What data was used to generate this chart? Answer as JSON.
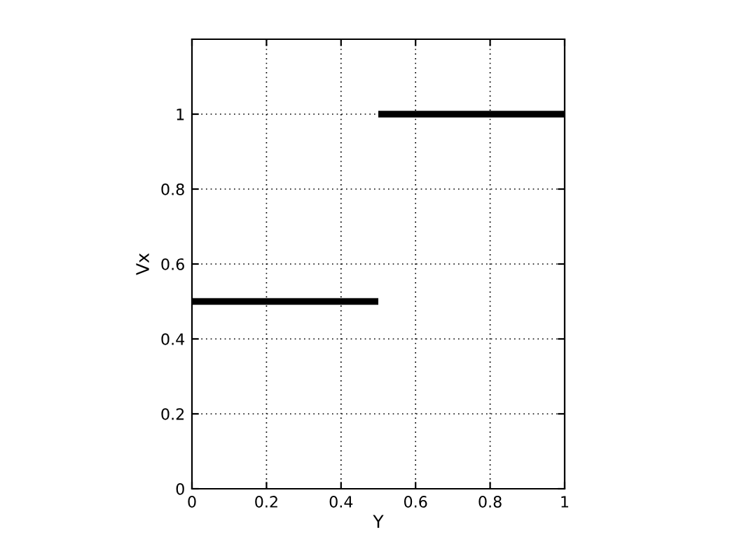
{
  "chart_data": {
    "type": "line",
    "xlabel": "Y",
    "ylabel": "Vx",
    "series": [
      {
        "color": "#000000",
        "x": [
          0,
          0.5
        ],
        "values": [
          0.5,
          0.5
        ]
      },
      {
        "color": "#000000",
        "x": [
          0.5,
          1
        ],
        "values": [
          1,
          1
        ]
      }
    ],
    "xlim": [
      0,
      1
    ],
    "ylim": [
      0,
      1.2
    ],
    "xticks": [
      0,
      0.2,
      0.4,
      0.6,
      0.8,
      1
    ],
    "yticks": [
      0,
      0.2,
      0.4,
      0.6,
      0.8,
      1
    ],
    "grid": true,
    "line_style": "solid",
    "marker": "none"
  }
}
